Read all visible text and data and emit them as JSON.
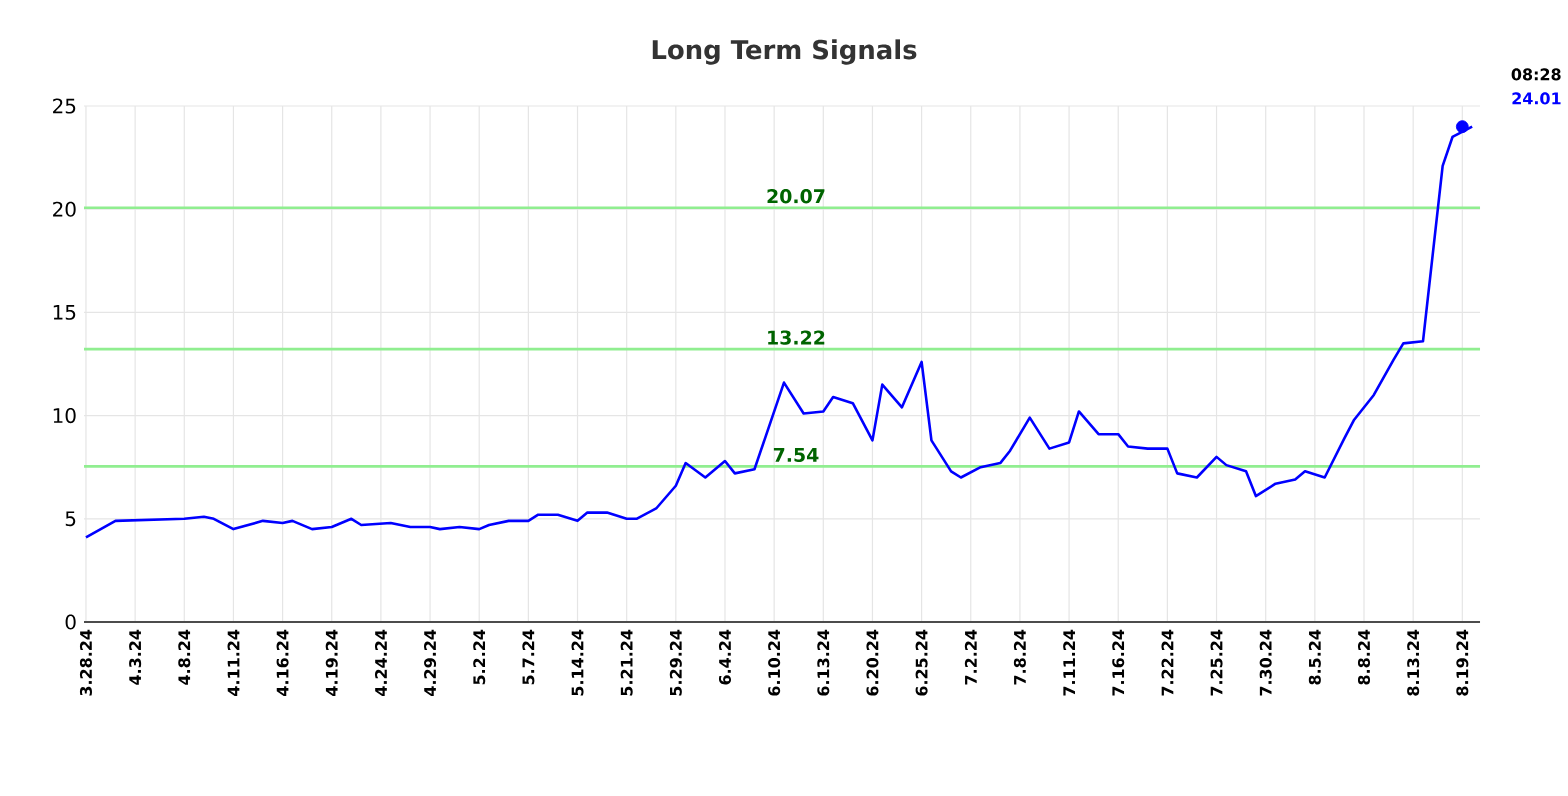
{
  "chart_data": {
    "type": "line",
    "title": "Long Term Signals",
    "categories": [
      "3.28.24",
      null,
      null,
      null,
      null,
      "4.3.24",
      null,
      null,
      null,
      null,
      "4.8.24",
      null,
      null,
      null,
      null,
      "4.11.24",
      null,
      null,
      null,
      null,
      "4.16.24",
      null,
      null,
      null,
      null,
      "4.19.24",
      null,
      null,
      null,
      null,
      "4.24.24",
      null,
      null,
      null,
      null,
      "4.29.24",
      null,
      null,
      null,
      null,
      "5.2.24",
      null,
      null,
      null,
      null,
      "5.7.24",
      null,
      null,
      null,
      null,
      "5.14.24",
      null,
      null,
      null,
      null,
      "5.21.24",
      null,
      null,
      null,
      null,
      "5.29.24",
      null,
      null,
      null,
      null,
      "6.4.24",
      null,
      null,
      null,
      null,
      "6.10.24",
      null,
      null,
      null,
      null,
      "6.13.24",
      null,
      null,
      null,
      null,
      "6.20.24",
      null,
      null,
      null,
      null,
      "6.25.24",
      null,
      null,
      null,
      null,
      "7.2.24",
      null,
      null,
      null,
      null,
      "7.8.24",
      null,
      null,
      null,
      null,
      "7.11.24",
      null,
      null,
      null,
      null,
      "7.16.24",
      null,
      null,
      null,
      null,
      "7.22.24",
      null,
      null,
      null,
      null,
      "7.25.24",
      null,
      null,
      null,
      null,
      "7.30.24",
      null,
      null,
      null,
      null,
      "8.5.24",
      null,
      null,
      null,
      null,
      "8.8.24",
      null,
      null,
      null,
      null,
      "8.13.24",
      null,
      null,
      null,
      null,
      "8.19.24",
      null
    ],
    "ylim": [
      0,
      25
    ],
    "yticks": [
      0,
      5,
      10,
      15,
      20,
      25
    ],
    "grid": true,
    "marker": "none",
    "line_style": "solid",
    "series": [
      {
        "color": "#0000ff",
        "values": [
          4.1,
          null,
          null,
          4.9,
          null,
          null,
          null,
          null,
          null,
          null,
          5.0,
          null,
          5.1,
          5.0,
          null,
          4.5,
          null,
          null,
          4.9,
          null,
          4.8,
          4.9,
          null,
          4.5,
          null,
          4.6,
          null,
          5.0,
          4.7,
          null,
          null,
          4.8,
          null,
          4.6,
          null,
          4.6,
          4.5,
          null,
          4.6,
          null,
          4.5,
          4.7,
          null,
          4.9,
          null,
          4.9,
          5.2,
          null,
          5.2,
          null,
          4.9,
          5.3,
          null,
          5.3,
          null,
          5.0,
          5.0,
          null,
          5.5,
          null,
          6.6,
          7.7,
          null,
          7.0,
          null,
          7.8,
          7.2,
          null,
          7.4,
          null,
          null,
          11.6,
          null,
          10.1,
          null,
          10.2,
          10.9,
          null,
          10.6,
          null,
          8.8,
          11.5,
          null,
          10.4,
          null,
          12.6,
          8.8,
          null,
          7.3,
          7.0,
          null,
          7.5,
          null,
          7.7,
          8.3,
          null,
          9.9,
          null,
          8.4,
          null,
          8.7,
          10.2,
          null,
          9.1,
          null,
          9.1,
          8.5,
          null,
          8.4,
          null,
          8.4,
          7.2,
          null,
          7.0,
          null,
          8.0,
          7.6,
          null,
          7.3,
          6.1,
          null,
          6.7,
          null,
          6.9,
          7.3,
          null,
          7.0,
          null,
          8.9,
          9.8,
          null,
          11.0,
          null,
          12.7,
          13.5,
          null,
          13.6,
          null,
          22.1,
          23.5,
          null,
          24.0
        ]
      },
      {
        "type": "scatter",
        "color": "#0000ff",
        "marker": "circle",
        "x": [
          "8.19.24"
        ],
        "values": [
          24.0
        ]
      }
    ],
    "ref_lines": [
      {
        "axis": "y",
        "value": 20.07,
        "label": "20.07",
        "color": "#90ee90"
      },
      {
        "axis": "y",
        "value": 13.22,
        "label": "13.22",
        "color": "#90ee90"
      },
      {
        "axis": "y",
        "value": 7.54,
        "label": "7.54",
        "color": "#90ee90"
      }
    ],
    "annotations": [
      "08:28",
      "24.01"
    ]
  }
}
